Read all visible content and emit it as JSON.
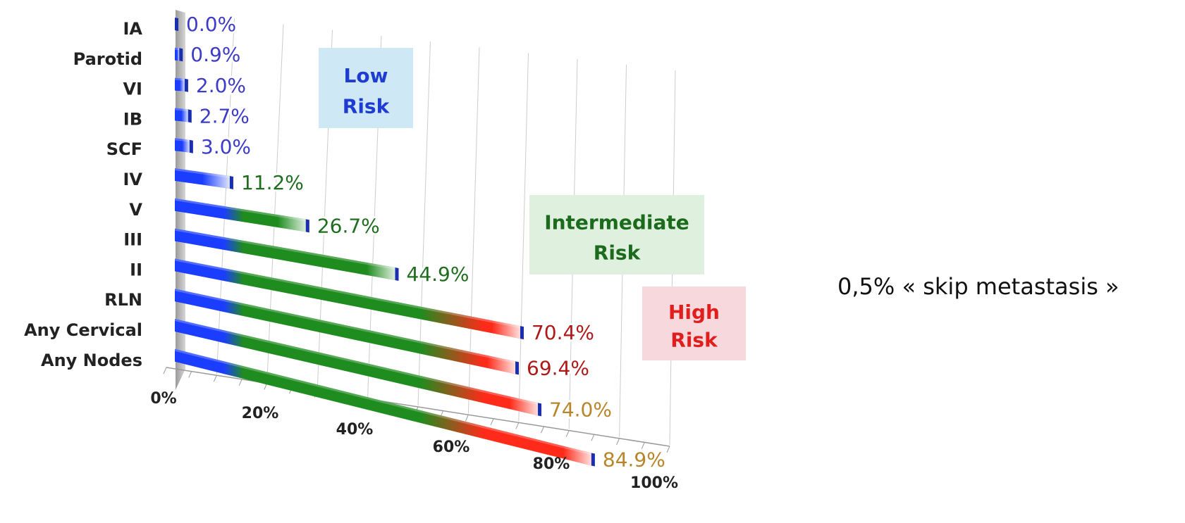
{
  "chart_data": {
    "type": "bar",
    "orientation": "horizontal",
    "categories": [
      "IA",
      "Parotid",
      "VI",
      "IB",
      "SCF",
      "IV",
      "V",
      "III",
      "II",
      "RLN",
      "Any Cervical",
      "Any Nodes"
    ],
    "values": [
      0.0,
      0.9,
      2.0,
      2.7,
      3.0,
      11.2,
      26.7,
      44.9,
      70.4,
      69.4,
      74.0,
      84.9
    ],
    "value_labels": [
      "0.0%",
      "0.9%",
      "2.0%",
      "2.7%",
      "3.0%",
      "11.2%",
      "26.7%",
      "44.9%",
      "70.4%",
      "69.4%",
      "74.0%",
      "84.9%"
    ],
    "label_colors": [
      "#3c3cc8",
      "#3c3cc8",
      "#3c3cc8",
      "#3c3cc8",
      "#3c3cc8",
      "#1e6e1e",
      "#1e6e1e",
      "#1e6e1e",
      "#b01818",
      "#b01818",
      "#b8862a",
      "#b8862a"
    ],
    "xlim": [
      0,
      100
    ],
    "x_ticks": [
      "0%",
      "20%",
      "40%",
      "60%",
      "80%",
      "100%"
    ],
    "grid": true,
    "style": "3d-perspective",
    "bar_gradient": [
      "#1a3dff",
      "#1f8c1f",
      "#ff2a1a"
    ],
    "risk_zones": [
      {
        "line1": "Low",
        "line2": "Risk",
        "text_color": "#1e3cd2",
        "box_color": "#cfe8f5"
      },
      {
        "line1": "Intermediate",
        "line2": "Risk",
        "text_color": "#1c6b1c",
        "box_color": "#dff0df"
      },
      {
        "line1": "High",
        "line2": "Risk",
        "text_color": "#e01e1e",
        "box_color": "#f7d9dd"
      }
    ]
  },
  "side_note": "0,5% « skip metastasis »"
}
